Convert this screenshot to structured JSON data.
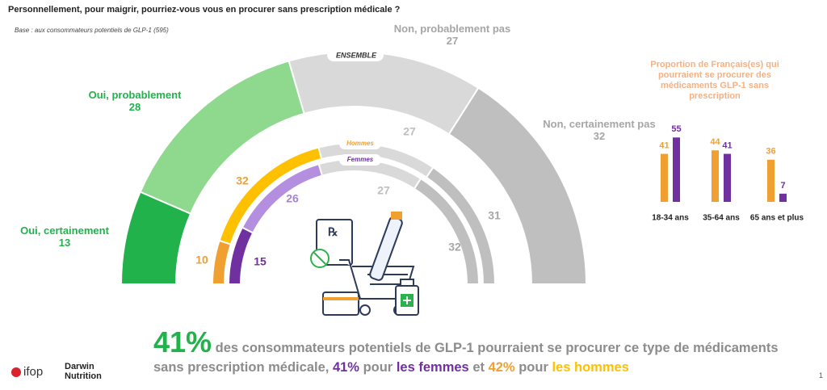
{
  "header": {
    "title": "Personnellement, pour maigrir, pourriez-vous vous en procurer sans prescription médicale ?",
    "base": "Base : aux consommateurs potentiels de GLP-1 (595)"
  },
  "chart_data": [
    {
      "type": "semi-donut",
      "label": "ENSEMBLE",
      "categories": [
        "Oui, certainement",
        "Oui, probablement",
        "Non, probablement pas",
        "Non, certainement pas"
      ],
      "values": [
        13,
        28,
        27,
        32
      ],
      "colors": [
        "#22b24c",
        "#8fd98f",
        "#d9d9d9",
        "#bfbfbf"
      ]
    },
    {
      "type": "semi-donut",
      "label": "Hommes",
      "values": [
        10,
        32,
        27,
        31
      ],
      "colors": [
        "#f0a030",
        "#ffc000",
        "#d9d9d9",
        "#bfbfbf"
      ]
    },
    {
      "type": "semi-donut",
      "label": "Femmes",
      "values": [
        15,
        26,
        27,
        32
      ],
      "colors": [
        "#7030a0",
        "#b48fe0",
        "#d9d9d9",
        "#bfbfbf"
      ]
    },
    {
      "type": "bar",
      "title": "Proportion de Français(es) qui pourraient se procurer des médicaments GLP-1 sans prescription",
      "categories": [
        "18-34 ans",
        "35-64 ans",
        "65 ans et plus"
      ],
      "series": [
        {
          "color": "#f0a030",
          "values": [
            41,
            44,
            36
          ]
        },
        {
          "color": "#7030a0",
          "values": [
            55,
            41,
            7
          ]
        }
      ]
    }
  ],
  "conclusion": {
    "parts": [
      "41%",
      "des consommateurs potentiels de GLP-1 pourraient se procurer ce type de médicaments sans prescription médicale,",
      "41%",
      "pour",
      "les femmes",
      "et",
      "42%",
      "pour",
      "les hommes"
    ]
  },
  "logos": {
    "ifop": "ifop",
    "darwin": "Darwin Nutrition"
  },
  "page_number": "1"
}
